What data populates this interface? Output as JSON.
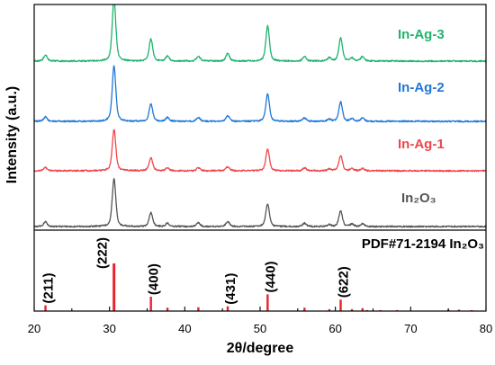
{
  "chart_data": {
    "type": "line",
    "xlabel": "2θ/degree",
    "ylabel": "Intensity (a.u.)",
    "xlim": [
      20,
      80
    ],
    "xticks": [
      20,
      30,
      40,
      50,
      60,
      70,
      80
    ],
    "grid": false,
    "series": [
      {
        "name": "In-Ag-3",
        "color": "#1fb36d",
        "peaks": [
          {
            "x": 21.5,
            "y": 10
          },
          {
            "x": 30.6,
            "y": 100
          },
          {
            "x": 35.5,
            "y": 35
          },
          {
            "x": 37.7,
            "y": 8
          },
          {
            "x": 41.8,
            "y": 8
          },
          {
            "x": 45.7,
            "y": 12
          },
          {
            "x": 51.0,
            "y": 56
          },
          {
            "x": 55.9,
            "y": 7
          },
          {
            "x": 59.2,
            "y": 5
          },
          {
            "x": 60.7,
            "y": 37
          },
          {
            "x": 62.2,
            "y": 5
          },
          {
            "x": 63.6,
            "y": 7
          }
        ]
      },
      {
        "name": "In-Ag-2",
        "color": "#1f77d6",
        "peaks": [
          {
            "x": 21.5,
            "y": 8
          },
          {
            "x": 30.6,
            "y": 100
          },
          {
            "x": 35.5,
            "y": 31
          },
          {
            "x": 37.7,
            "y": 7
          },
          {
            "x": 41.8,
            "y": 7
          },
          {
            "x": 45.7,
            "y": 10
          },
          {
            "x": 51.0,
            "y": 50
          },
          {
            "x": 55.9,
            "y": 6
          },
          {
            "x": 59.2,
            "y": 4
          },
          {
            "x": 60.7,
            "y": 35
          },
          {
            "x": 62.2,
            "y": 5
          },
          {
            "x": 63.6,
            "y": 6
          }
        ]
      },
      {
        "name": "In-Ag-1",
        "color": "#f0464a",
        "peaks": [
          {
            "x": 21.5,
            "y": 8
          },
          {
            "x": 30.6,
            "y": 100
          },
          {
            "x": 35.5,
            "y": 32
          },
          {
            "x": 37.7,
            "y": 7
          },
          {
            "x": 41.8,
            "y": 7
          },
          {
            "x": 45.7,
            "y": 10
          },
          {
            "x": 51.0,
            "y": 52
          },
          {
            "x": 55.9,
            "y": 7
          },
          {
            "x": 59.2,
            "y": 4
          },
          {
            "x": 60.7,
            "y": 37
          },
          {
            "x": 62.2,
            "y": 5
          },
          {
            "x": 63.6,
            "y": 6
          }
        ]
      },
      {
        "name": "In₂O₃",
        "color": "#555555",
        "peaks": [
          {
            "x": 21.5,
            "y": 10
          },
          {
            "x": 30.6,
            "y": 100
          },
          {
            "x": 35.5,
            "y": 29
          },
          {
            "x": 37.7,
            "y": 7
          },
          {
            "x": 41.8,
            "y": 8
          },
          {
            "x": 45.7,
            "y": 11
          },
          {
            "x": 51.0,
            "y": 48
          },
          {
            "x": 55.9,
            "y": 7
          },
          {
            "x": 59.2,
            "y": 4
          },
          {
            "x": 60.7,
            "y": 33
          },
          {
            "x": 62.2,
            "y": 5
          },
          {
            "x": 63.6,
            "y": 6
          }
        ]
      }
    ],
    "reference": {
      "name": "PDF#71-2194 In₂O₃",
      "color": "#e8232b",
      "lines": [
        {
          "x": 21.5,
          "y": 12,
          "label": "(211)"
        },
        {
          "x": 30.6,
          "y": 100,
          "label": "(222)"
        },
        {
          "x": 35.5,
          "y": 30,
          "label": "(400)"
        },
        {
          "x": 37.7,
          "y": 7
        },
        {
          "x": 41.8,
          "y": 8
        },
        {
          "x": 45.7,
          "y": 10,
          "label": "(431)"
        },
        {
          "x": 51.0,
          "y": 35,
          "label": "(440)"
        },
        {
          "x": 55.9,
          "y": 7
        },
        {
          "x": 59.2,
          "y": 4
        },
        {
          "x": 60.7,
          "y": 24,
          "label": "(622)"
        },
        {
          "x": 62.2,
          "y": 4
        },
        {
          "x": 63.6,
          "y": 6
        },
        {
          "x": 64.2,
          "y": 2
        },
        {
          "x": 66.0,
          "y": 2
        },
        {
          "x": 68.2,
          "y": 2
        },
        {
          "x": 75.0,
          "y": 3
        },
        {
          "x": 76.4,
          "y": 3
        },
        {
          "x": 78.1,
          "y": 2
        }
      ]
    }
  }
}
